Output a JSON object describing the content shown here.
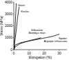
{
  "chart_data": {
    "type": "line",
    "x_label": "Elongation (%)",
    "y_label": "Stress (MPa)",
    "xlim": [
      0,
      35
    ],
    "xticks": [
      0,
      10,
      20,
      30
    ],
    "ylim": [
      0,
      4000
    ],
    "yticks": [
      0,
      1000,
      2000,
      3000,
      4000
    ],
    "series": [
      {
        "name": "Steel",
        "color": "#000000",
        "x": [
          0,
          0.8,
          1.2,
          1.6
        ],
        "values": [
          0,
          1800,
          2800,
          3900
        ]
      },
      {
        "name": "Kevlar",
        "color": "#000000",
        "x": [
          0,
          1.5,
          2.5,
          3.5
        ],
        "values": [
          0,
          1500,
          2700,
          3600
        ]
      },
      {
        "name": "Silkworm Bombyx mori",
        "color": "#000000",
        "x": [
          0,
          1,
          4,
          10,
          18
        ],
        "values": [
          0,
          250,
          500,
          750,
          1000
        ]
      },
      {
        "name": "Spider Argiope trifasciata",
        "color": "#000000",
        "x": [
          0,
          1,
          5,
          15,
          25,
          30
        ],
        "values": [
          0,
          400,
          600,
          850,
          1100,
          1300
        ]
      }
    ]
  }
}
